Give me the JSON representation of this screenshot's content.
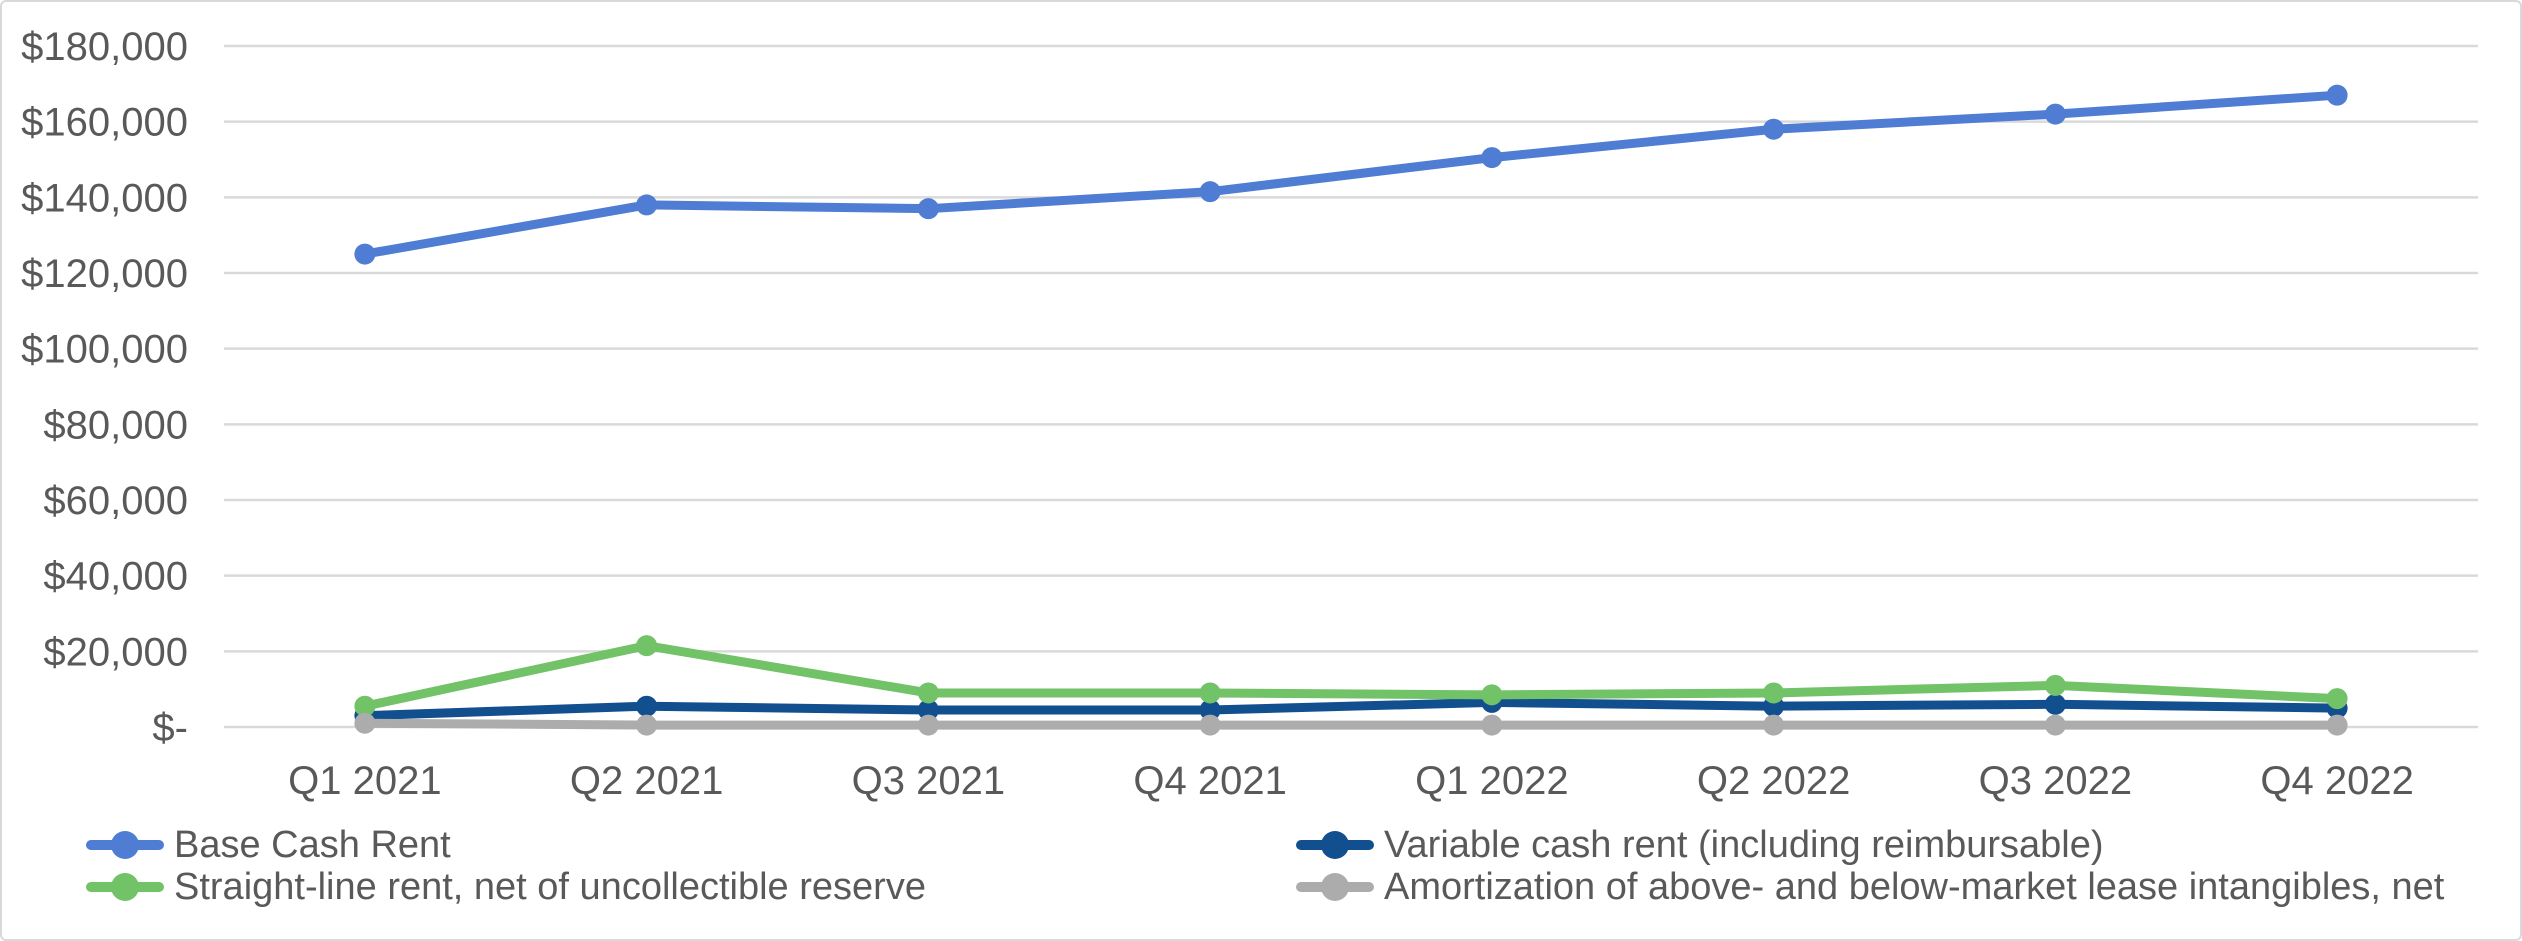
{
  "chart_data": {
    "type": "line",
    "categories": [
      "Q1 2021",
      "Q2 2021",
      "Q3 2021",
      "Q4 2021",
      "Q1 2022",
      "Q2 2022",
      "Q3 2022",
      "Q4 2022"
    ],
    "series": [
      {
        "id": "base-cash-rent",
        "name": "Base Cash Rent",
        "color": "#4E7DD3",
        "values": [
          125000,
          138000,
          137000,
          141500,
          150500,
          158000,
          162000,
          167000
        ]
      },
      {
        "id": "variable-cash-rent",
        "name": "Variable cash rent (including reimbursable)",
        "color": "#124F8F",
        "values": [
          3000,
          5500,
          4500,
          4500,
          6500,
          5500,
          6000,
          5000
        ]
      },
      {
        "id": "straight-line-rent",
        "name": "Straight-line rent, net of uncollectible reserve",
        "color": "#72C267",
        "values": [
          5500,
          21500,
          9000,
          9000,
          8500,
          9000,
          11000,
          7500
        ]
      },
      {
        "id": "amortization-lease-intangibles",
        "name": "Amortization of above- and below-market lease intangibles, net",
        "color": "#ACACAC",
        "values": [
          1000,
          500,
          500,
          500,
          500,
          500,
          500,
          500
        ]
      }
    ],
    "y_ticks": [
      "$180,000",
      "$160,000",
      "$140,000",
      "$120,000",
      "$100,000",
      "$80,000",
      "$60,000",
      "$40,000",
      "$20,000",
      "$-"
    ],
    "y_step": 20000,
    "ylim": [
      0,
      180000
    ],
    "xlabel": "",
    "ylabel": "",
    "title": "",
    "grid": "horizontal",
    "grid_color": "#D9D9D9",
    "axis_text_color": "#595959",
    "legend_position": "bottom-two-columns"
  }
}
